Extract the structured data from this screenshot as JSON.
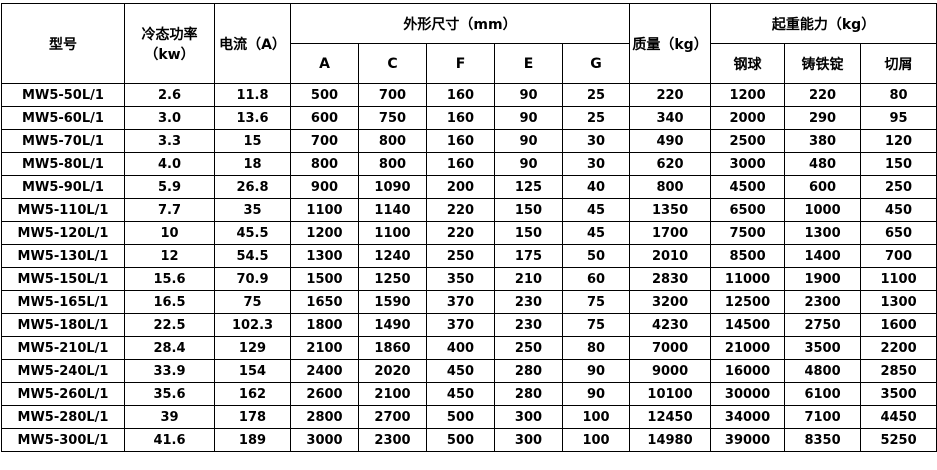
{
  "header": {
    "model": "型号",
    "power": [
      "冷态功率",
      "（kw）"
    ],
    "current": "电流（A）",
    "dimensions": "外形尺寸（mm）",
    "dimension_cols": [
      "A",
      "C",
      "F",
      "E",
      "G"
    ],
    "mass": "质量（kg）",
    "lifting": "起重能力（kg）",
    "lifting_cols": [
      "钢球",
      "铸铁锭",
      "切屑"
    ]
  },
  "table": {
    "rows": [
      [
        "MW5-50L/1",
        "2.6",
        "11.8",
        "500",
        "700",
        "160",
        "90",
        "25",
        "220",
        "1200",
        "220",
        "80"
      ],
      [
        "MW5-60L/1",
        "3.0",
        "13.6",
        "600",
        "750",
        "160",
        "90",
        "25",
        "340",
        "2000",
        "290",
        "95"
      ],
      [
        "MW5-70L/1",
        "3.3",
        "15",
        "700",
        "800",
        "160",
        "90",
        "30",
        "490",
        "2500",
        "380",
        "120"
      ],
      [
        "MW5-80L/1",
        "4.0",
        "18",
        "800",
        "800",
        "160",
        "90",
        "30",
        "620",
        "3000",
        "480",
        "150"
      ],
      [
        "MW5-90L/1",
        "5.9",
        "26.8",
        "900",
        "1090",
        "200",
        "125",
        "40",
        "800",
        "4500",
        "600",
        "250"
      ],
      [
        "MW5-110L/1",
        "7.7",
        "35",
        "1100",
        "1140",
        "220",
        "150",
        "45",
        "1350",
        "6500",
        "1000",
        "450"
      ],
      [
        "MW5-120L/1",
        "10",
        "45.5",
        "1200",
        "1100",
        "220",
        "150",
        "45",
        "1700",
        "7500",
        "1300",
        "650"
      ],
      [
        "MW5-130L/1",
        "12",
        "54.5",
        "1300",
        "1240",
        "250",
        "175",
        "50",
        "2010",
        "8500",
        "1400",
        "700"
      ],
      [
        "MW5-150L/1",
        "15.6",
        "70.9",
        "1500",
        "1250",
        "350",
        "210",
        "60",
        "2830",
        "11000",
        "1900",
        "1100"
      ],
      [
        "MW5-165L/1",
        "16.5",
        "75",
        "1650",
        "1590",
        "370",
        "230",
        "75",
        "3200",
        "12500",
        "2300",
        "1300"
      ],
      [
        "MW5-180L/1",
        "22.5",
        "102.3",
        "1800",
        "1490",
        "370",
        "230",
        "75",
        "4230",
        "14500",
        "2750",
        "1600"
      ],
      [
        "MW5-210L/1",
        "28.4",
        "129",
        "2100",
        "1860",
        "400",
        "250",
        "80",
        "7000",
        "21000",
        "3500",
        "2200"
      ],
      [
        "MW5-240L/1",
        "33.9",
        "154",
        "2400",
        "2020",
        "450",
        "280",
        "90",
        "9000",
        "16000",
        "4800",
        "2850"
      ],
      [
        "MW5-260L/1",
        "35.6",
        "162",
        "2600",
        "2100",
        "450",
        "280",
        "90",
        "10100",
        "30000",
        "6100",
        "3500"
      ],
      [
        "MW5-280L/1",
        "39",
        "178",
        "2800",
        "2700",
        "500",
        "300",
        "100",
        "12450",
        "34000",
        "7100",
        "4450"
      ],
      [
        "MW5-300L/1",
        "41.6",
        "189",
        "3000",
        "2300",
        "500",
        "300",
        "100",
        "14980",
        "39000",
        "8350",
        "5250"
      ]
    ]
  }
}
